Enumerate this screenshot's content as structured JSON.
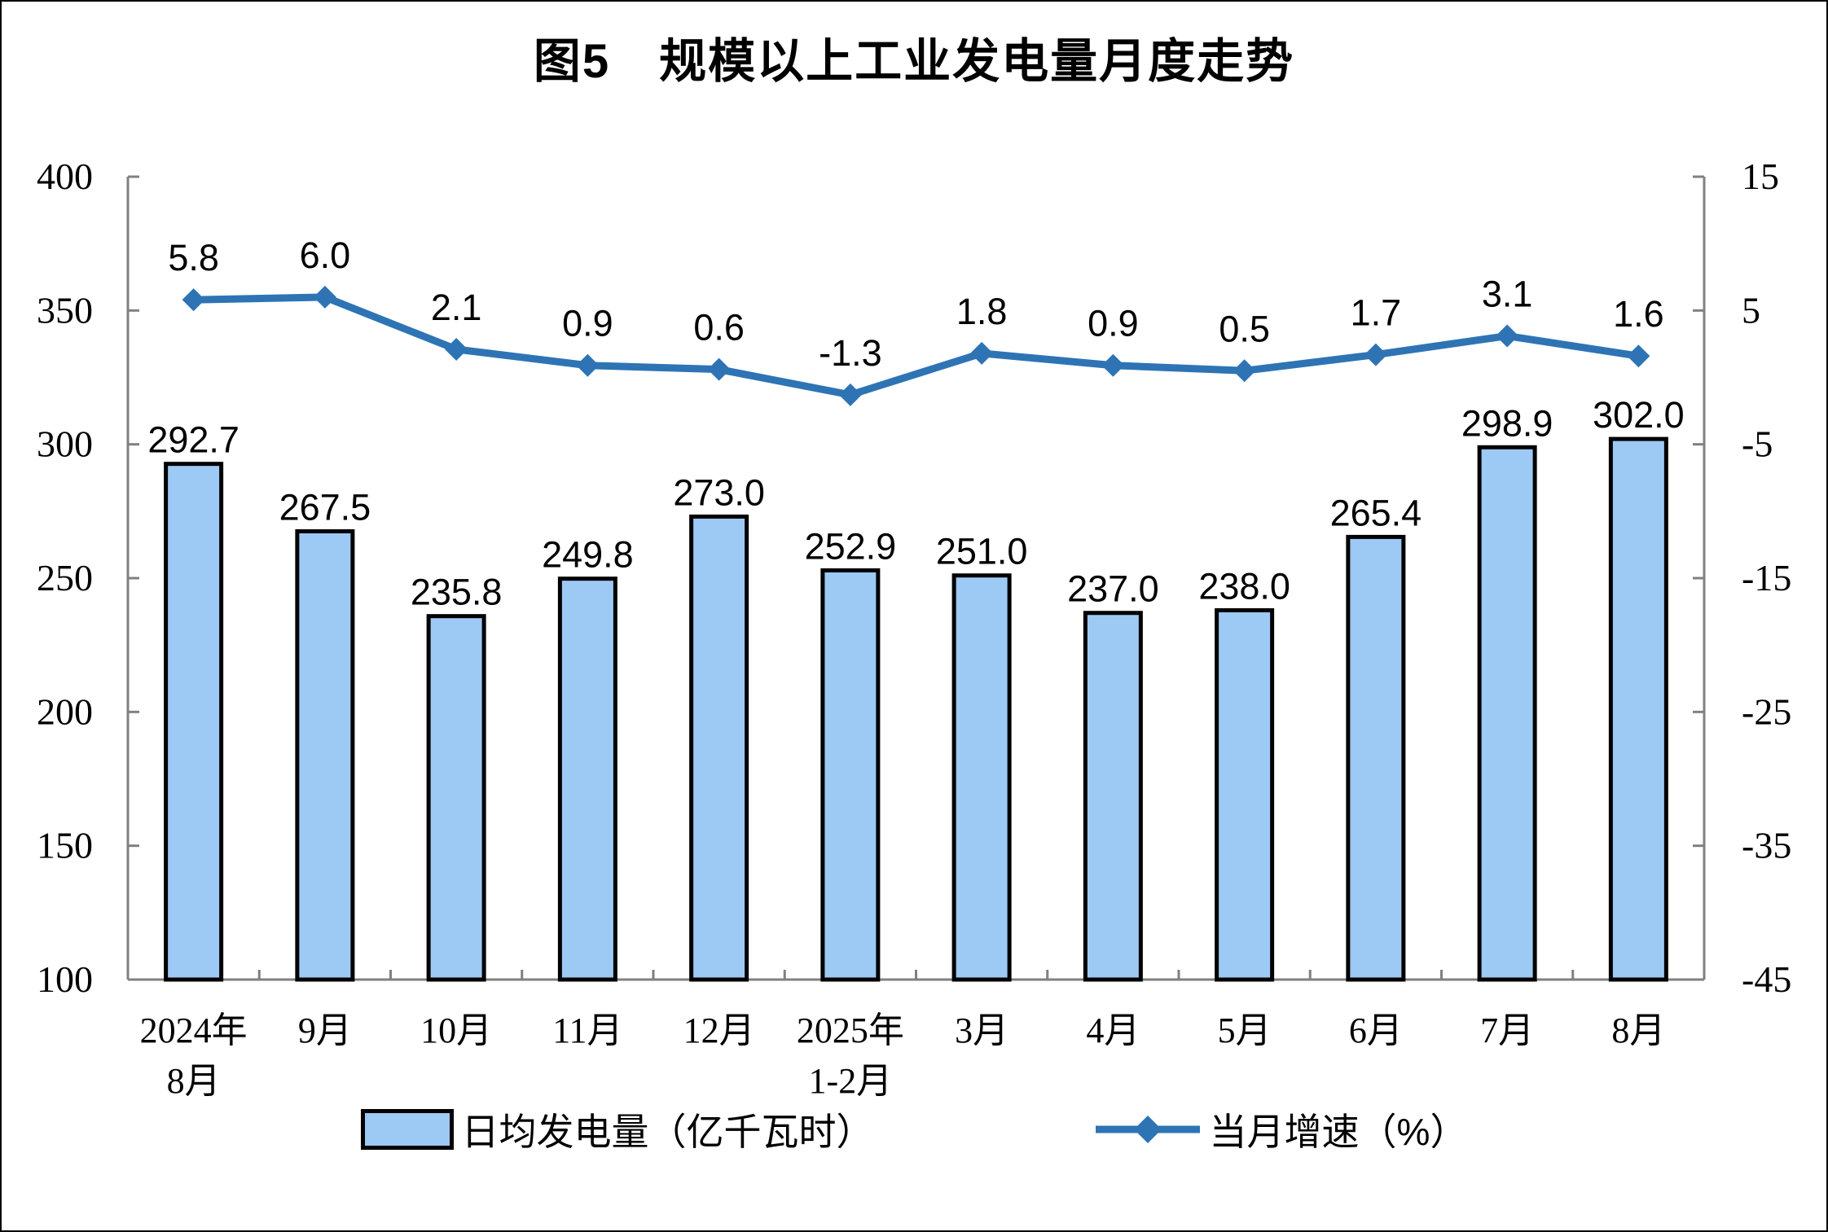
{
  "title": "图5　规模以上工业发电量月度走势",
  "legend": {
    "bar_label": "日均发电量（亿千瓦时）",
    "line_label": "当月增速（%）"
  },
  "chart_data": {
    "type": "bar",
    "subtype": "bar+line combo, dual axis",
    "title": "图5　规模以上工业发电量月度走势",
    "categories": [
      "2024年\n8月",
      "9月",
      "10月",
      "11月",
      "12月",
      "2025年\n1-2月",
      "3月",
      "4月",
      "5月",
      "6月",
      "7月",
      "8月"
    ],
    "series": [
      {
        "name": "日均发电量（亿千瓦时）",
        "type": "bar",
        "axis": "left",
        "values": [
          292.7,
          267.5,
          235.8,
          249.8,
          273.0,
          252.9,
          251.0,
          237.0,
          238.0,
          265.4,
          298.9,
          302.0
        ],
        "fill": "#9DC9F5",
        "border": "#000000"
      },
      {
        "name": "当月增速（%）",
        "type": "line",
        "axis": "right",
        "marker": "diamond",
        "values": [
          5.8,
          6.0,
          2.1,
          0.9,
          0.6,
          -1.3,
          1.8,
          0.9,
          0.5,
          1.7,
          3.1,
          1.6
        ],
        "color": "#2E74B5"
      }
    ],
    "left_axis": {
      "min": 100,
      "max": 400,
      "ticks": [
        400,
        350,
        300,
        250,
        200,
        150,
        100
      ]
    },
    "right_axis": {
      "min": -45,
      "max": 15,
      "ticks": [
        15,
        5,
        -5,
        -15,
        -25,
        -35,
        -45
      ]
    },
    "grid": false,
    "legend_position": "bottom",
    "colors": {
      "axis": "#808080",
      "tick_label": "#000000",
      "data_label": "#000000"
    }
  }
}
